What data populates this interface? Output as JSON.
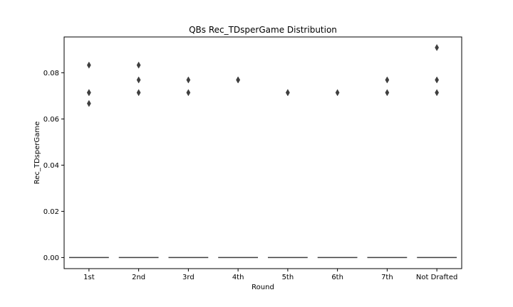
{
  "chart_data": {
    "type": "box",
    "title": "QBs Rec_TDsperGame Distribution",
    "xlabel": "Round",
    "ylabel": "Rec_TDsperGame",
    "categories": [
      "1st",
      "2nd",
      "3rd",
      "4th",
      "5th",
      "6th",
      "7th",
      "Not Drafted"
    ],
    "ylim": [
      -0.0048,
      0.0955
    ],
    "yticks": [
      0.0,
      0.02,
      0.04,
      0.06,
      0.08
    ],
    "ytick_labels": [
      "0.00",
      "0.02",
      "0.04",
      "0.06",
      "0.08"
    ],
    "box_values": [
      0,
      0,
      0,
      0,
      0,
      0,
      0,
      0
    ],
    "outliers": [
      [
        0.0833,
        0.0714,
        0.0714,
        0.0667
      ],
      [
        0.0833,
        0.0769,
        0.0714
      ],
      [
        0.0769,
        0.0714
      ],
      [
        0.0769,
        0.0769
      ],
      [
        0.0714,
        0.0714
      ],
      [
        0.0714
      ],
      [
        0.0769,
        0.0714
      ],
      [
        0.0909,
        0.0769,
        0.0714
      ]
    ],
    "grid": false,
    "colors": {
      "box_line": "#3f3f3f",
      "outlier": "#3f3f3f",
      "axis": "#000000"
    }
  }
}
